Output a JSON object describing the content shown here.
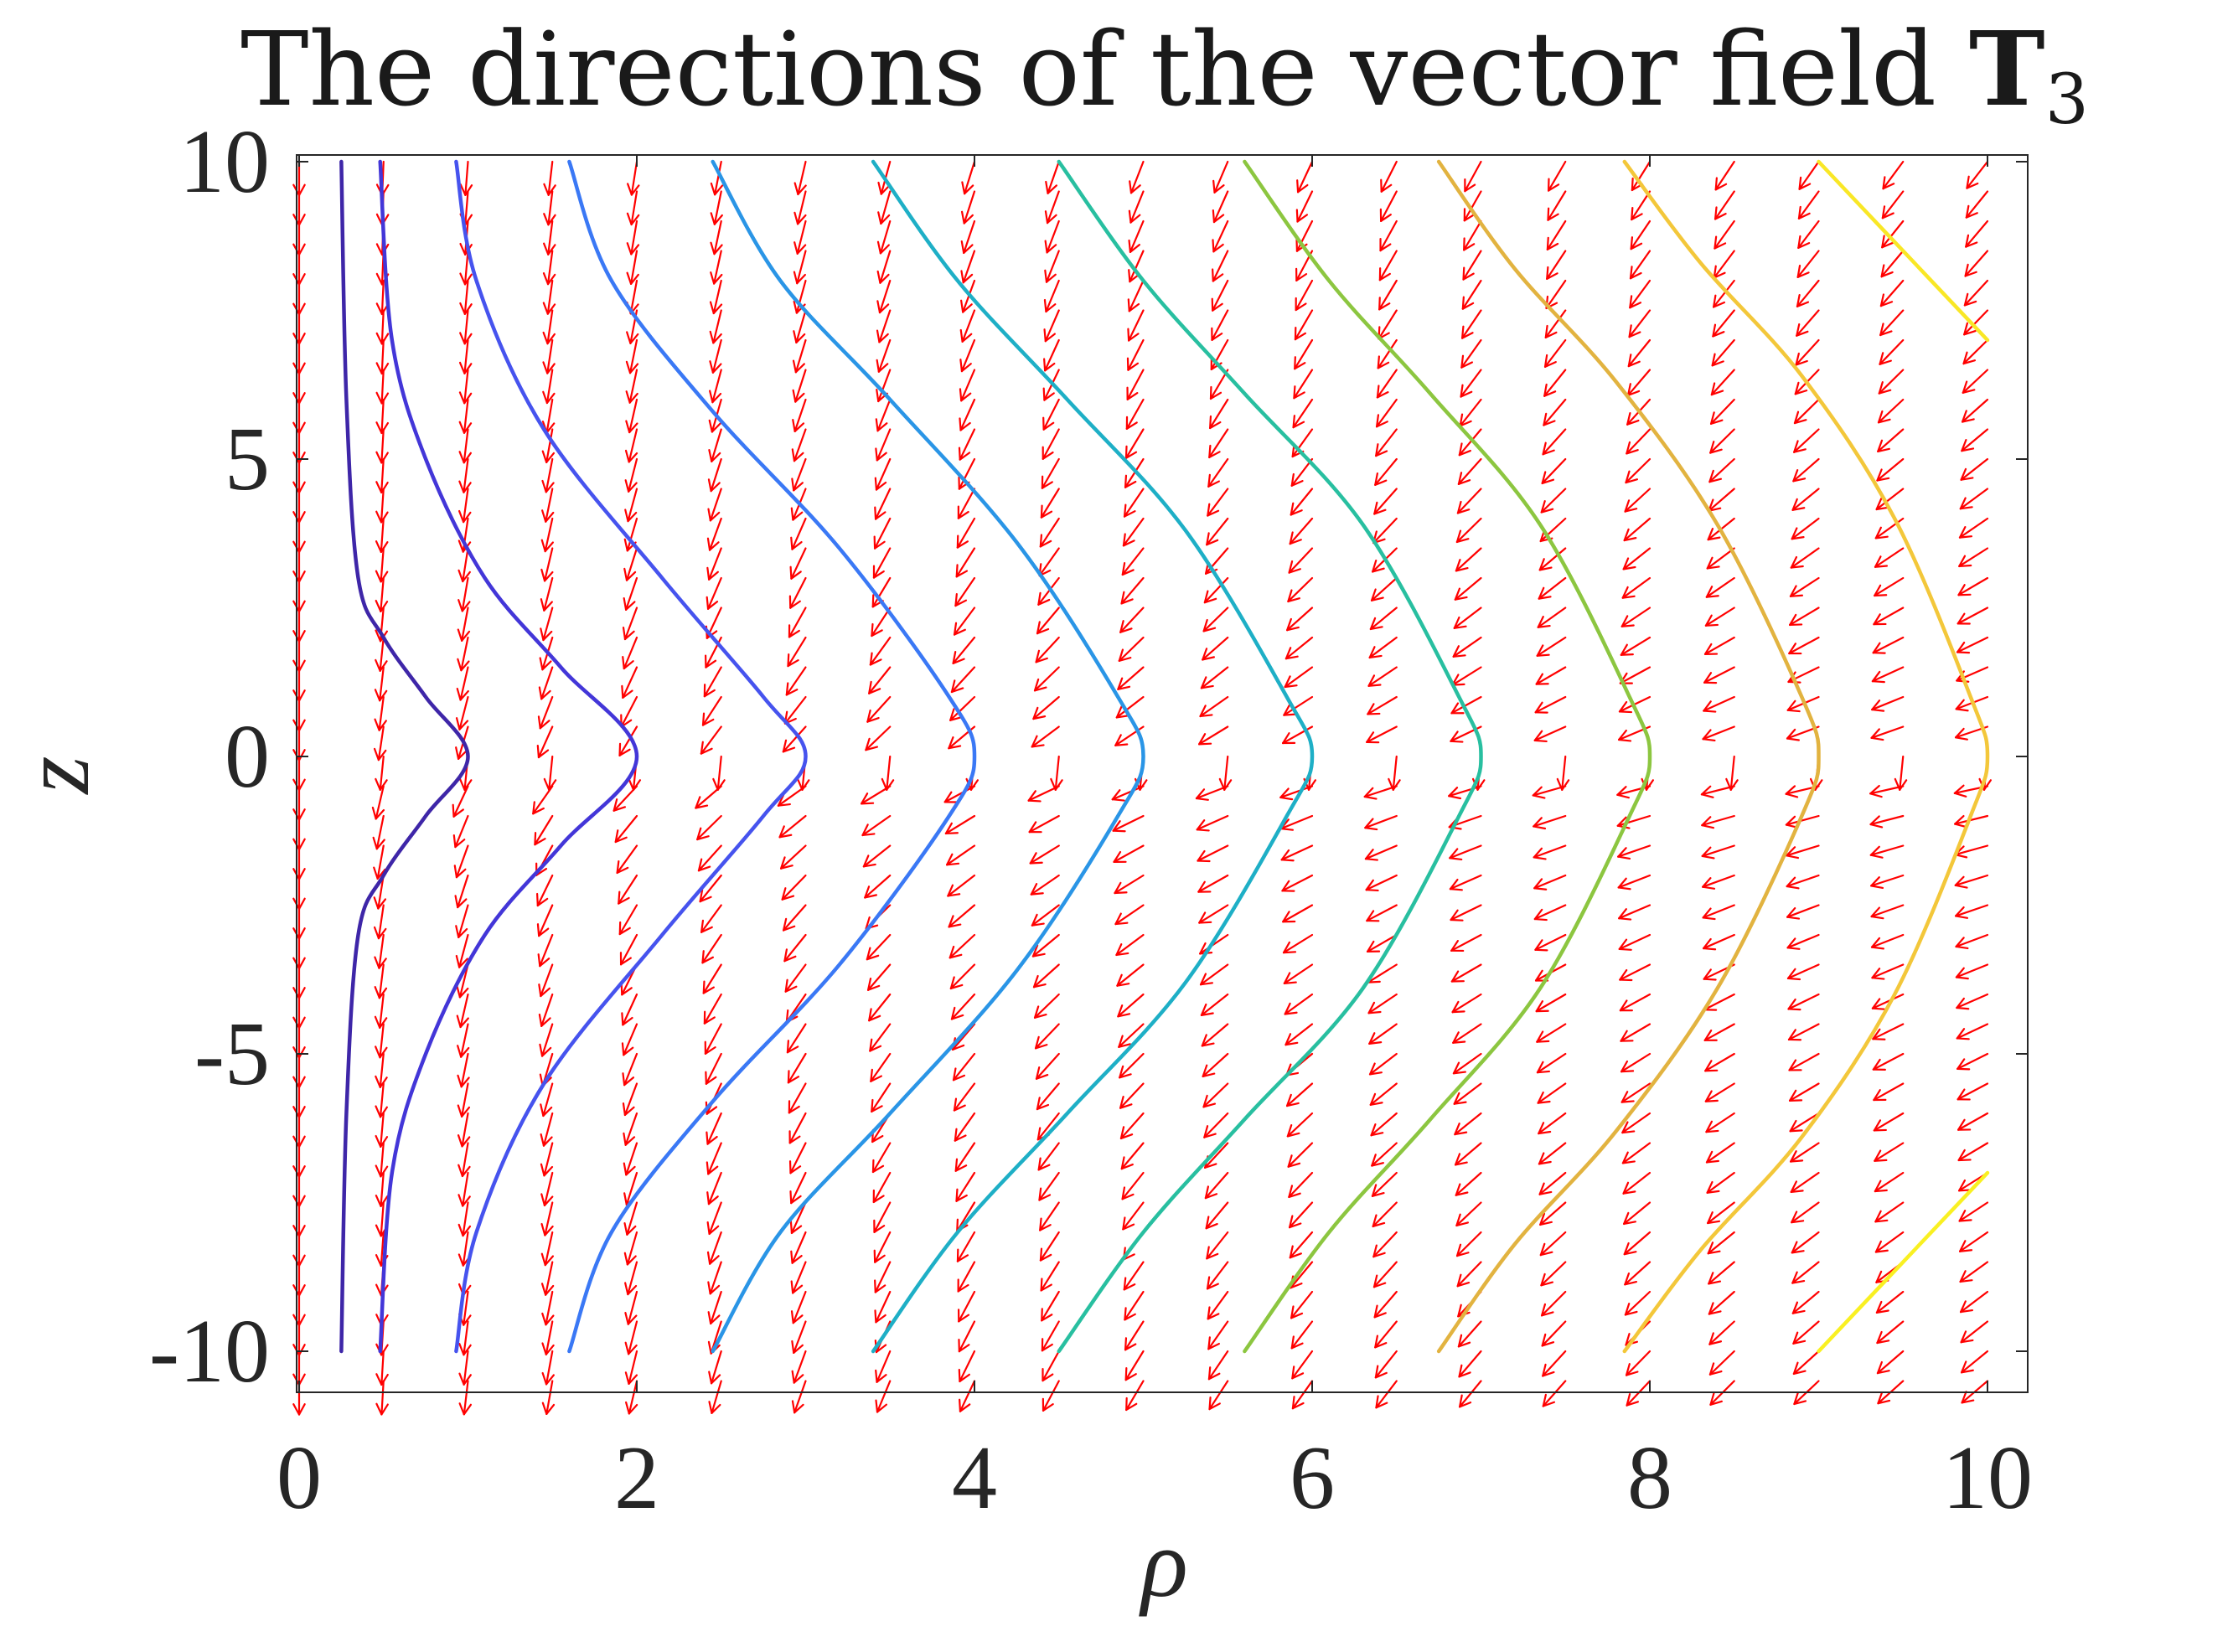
{
  "chart_data": {
    "type": "quiver",
    "title": "The directions of the vector field ",
    "title_bold": "T",
    "title_subscript": "3",
    "xlabel": "ρ",
    "ylabel": "z",
    "xlim": [
      0,
      10.2
    ],
    "ylim": [
      -10.6,
      10
    ],
    "x_ticks": [
      0,
      2,
      4,
      6,
      8,
      10
    ],
    "x_tick_labels": [
      "0",
      "2",
      "4",
      "6",
      "8",
      "10"
    ],
    "y_ticks": [
      10,
      5,
      0,
      -5,
      -10
    ],
    "y_tick_labels": [
      "10",
      "5",
      "0",
      "-5",
      "-10"
    ],
    "grid": false,
    "arrow_color": "#ff0000",
    "arrow_columns_rho": [
      0,
      0.5,
      1,
      1.5,
      2,
      2.5,
      3,
      3.5,
      4,
      4.5,
      5,
      5.5,
      6,
      6.5,
      7,
      7.5,
      8,
      8.5,
      9,
      9.5,
      10
    ],
    "arrow_rows_z": [
      10,
      9.5,
      9,
      8.5,
      8,
      7.5,
      7,
      6.5,
      6,
      5.5,
      5,
      4.5,
      4,
      3.5,
      3,
      2.5,
      2,
      1.5,
      1,
      0.5,
      0,
      -0.5,
      -1,
      -1.5,
      -2,
      -2.5,
      -3,
      -3.5,
      -4,
      -4.5,
      -5,
      -5.5,
      -6,
      -6.5,
      -7,
      -7.5,
      -8,
      -8.5,
      -9,
      -9.5,
      -10,
      -10.5
    ],
    "field_lines": [
      {
        "color": "#3e26a8",
        "points": [
          [
            0.25,
            10
          ],
          [
            0.28,
            6
          ],
          [
            0.35,
            3
          ],
          [
            0.5,
            2
          ],
          [
            0.75,
            1
          ],
          [
            1,
            0
          ],
          [
            0.75,
            -1
          ],
          [
            0.5,
            -2
          ],
          [
            0.35,
            -3
          ],
          [
            0.28,
            -6
          ],
          [
            0.25,
            -10
          ]
        ]
      },
      {
        "color": "#4336d8",
        "points": [
          [
            0.48,
            10
          ],
          [
            0.55,
            7
          ],
          [
            0.75,
            5
          ],
          [
            1.1,
            3
          ],
          [
            1.55,
            1.5
          ],
          [
            2,
            0
          ],
          [
            1.55,
            -1.5
          ],
          [
            1.1,
            -3
          ],
          [
            0.75,
            -5
          ],
          [
            0.55,
            -7
          ],
          [
            0.48,
            -10
          ]
        ]
      },
      {
        "color": "#4653ee",
        "points": [
          [
            0.93,
            10
          ],
          [
            1.05,
            8
          ],
          [
            1.45,
            5.5
          ],
          [
            2.15,
            3
          ],
          [
            2.75,
            1
          ],
          [
            3,
            0
          ],
          [
            2.75,
            -1
          ],
          [
            2.15,
            -3
          ],
          [
            1.45,
            -5.5
          ],
          [
            1.05,
            -8
          ],
          [
            0.93,
            -10
          ]
        ]
      },
      {
        "color": "#3a78f5",
        "points": [
          [
            1.6,
            10
          ],
          [
            1.85,
            8
          ],
          [
            2.45,
            5.8
          ],
          [
            3.2,
            3.5
          ],
          [
            3.85,
            1
          ],
          [
            4,
            0
          ],
          [
            3.85,
            -1
          ],
          [
            3.2,
            -3.5
          ],
          [
            2.45,
            -5.8
          ],
          [
            1.85,
            -8
          ],
          [
            1.6,
            -10
          ]
        ]
      },
      {
        "color": "#2a95e6",
        "points": [
          [
            2.45,
            10
          ],
          [
            2.85,
            8
          ],
          [
            3.5,
            6
          ],
          [
            4.25,
            3.6
          ],
          [
            4.85,
            1
          ],
          [
            5,
            0
          ],
          [
            4.85,
            -1
          ],
          [
            4.25,
            -3.6
          ],
          [
            3.5,
            -6
          ],
          [
            2.85,
            -8
          ],
          [
            2.45,
            -10
          ]
        ]
      },
      {
        "color": "#1eafc6",
        "points": [
          [
            3.4,
            10
          ],
          [
            3.9,
            8
          ],
          [
            4.55,
            6
          ],
          [
            5.25,
            3.8
          ],
          [
            5.85,
            1
          ],
          [
            6,
            0
          ],
          [
            5.85,
            -1
          ],
          [
            5.25,
            -3.8
          ],
          [
            4.55,
            -6
          ],
          [
            3.9,
            -8
          ],
          [
            3.4,
            -10
          ]
        ]
      },
      {
        "color": "#28bfa0",
        "points": [
          [
            4.5,
            10
          ],
          [
            5,
            8
          ],
          [
            5.6,
            6.1
          ],
          [
            6.3,
            3.9
          ],
          [
            6.87,
            1
          ],
          [
            7,
            0
          ],
          [
            6.87,
            -1
          ],
          [
            6.3,
            -3.9
          ],
          [
            5.6,
            -6.1
          ],
          [
            5,
            -8
          ],
          [
            4.5,
            -10
          ]
        ]
      },
      {
        "color": "#8cc640",
        "points": [
          [
            5.6,
            10
          ],
          [
            6.1,
            8
          ],
          [
            6.7,
            6.1
          ],
          [
            7.35,
            3.9
          ],
          [
            7.88,
            1
          ],
          [
            8,
            0
          ],
          [
            7.88,
            -1
          ],
          [
            7.35,
            -3.9
          ],
          [
            6.7,
            -6.1
          ],
          [
            6.1,
            -8
          ],
          [
            5.6,
            -10
          ]
        ]
      },
      {
        "color": "#e2b340",
        "points": [
          [
            6.75,
            10
          ],
          [
            7.2,
            8.2
          ],
          [
            7.8,
            6.3
          ],
          [
            8.4,
            3.9
          ],
          [
            8.9,
            1
          ],
          [
            9,
            0
          ],
          [
            8.9,
            -1
          ],
          [
            8.4,
            -3.9
          ],
          [
            7.8,
            -6.3
          ],
          [
            7.2,
            -8.2
          ],
          [
            6.75,
            -10
          ]
        ]
      },
      {
        "color": "#f3c73a",
        "points": [
          [
            7.85,
            10
          ],
          [
            8.3,
            8.3
          ],
          [
            8.9,
            6.4
          ],
          [
            9.45,
            4
          ],
          [
            9.9,
            1
          ],
          [
            10,
            0
          ],
          [
            9.9,
            -1
          ],
          [
            9.45,
            -4
          ],
          [
            8.9,
            -6.4
          ],
          [
            8.3,
            -8.3
          ],
          [
            7.85,
            -10
          ]
        ]
      },
      {
        "color": "#f9e726",
        "points": [
          [
            9,
            10
          ],
          [
            9.4,
            8.8
          ],
          [
            10,
            7
          ]
        ]
      },
      {
        "color": "#f9f022",
        "points": [
          [
            9,
            -10
          ],
          [
            9.4,
            -8.8
          ],
          [
            10,
            -7
          ]
        ]
      }
    ]
  }
}
